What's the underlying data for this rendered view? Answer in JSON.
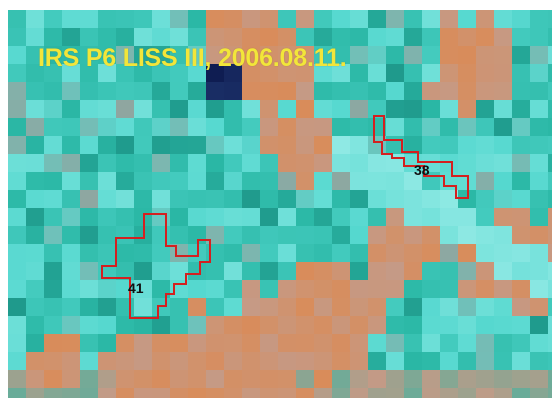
{
  "image": {
    "caption": "IRS P6 LISS III, 2006.08.11.",
    "palette": {
      "teal": "#2ebfae",
      "cyan": "#4fd9d2",
      "light_cyan": "#88ecea",
      "orange": "#d98c5a",
      "salmon": "#c8a088",
      "dark_navy": "#0a1445",
      "plot_outline": "#d42020",
      "caption_color": "#f2e63a"
    }
  },
  "plots": [
    {
      "id": "plot-38",
      "label": "38"
    },
    {
      "id": "plot-41",
      "label": "41"
    }
  ]
}
